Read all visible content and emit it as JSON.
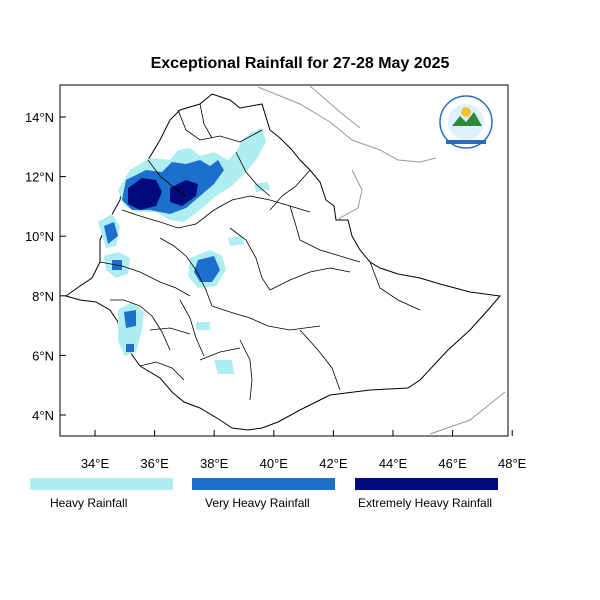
{
  "title": "Exceptional Rainfall for 27-28 May 2025",
  "axes": {
    "lat_ticks": [
      {
        "value": 14,
        "label": "14°N"
      },
      {
        "value": 12,
        "label": "12°N"
      },
      {
        "value": 10,
        "label": "10°N"
      },
      {
        "value": 8,
        "label": "8°N"
      },
      {
        "value": 6,
        "label": "6°N"
      },
      {
        "value": 4,
        "label": "4°N"
      }
    ],
    "lon_ticks": [
      {
        "value": 34,
        "label": "34°E"
      },
      {
        "value": 36,
        "label": "36°E"
      },
      {
        "value": 38,
        "label": "38°E"
      },
      {
        "value": 40,
        "label": "40°E"
      },
      {
        "value": 42,
        "label": "42°E"
      },
      {
        "value": 44,
        "label": "44°E"
      },
      {
        "value": 46,
        "label": "46°E"
      },
      {
        "value": 48,
        "label": "48°E"
      }
    ]
  },
  "legend": [
    {
      "label": "Heavy Rainfall",
      "color": "#aeeef0"
    },
    {
      "label": "Very Heavy Rainfall",
      "color": "#1c6fcc"
    },
    {
      "label": "Extremely Heavy Rainfall",
      "color": "#000a7a"
    }
  ],
  "colors": {
    "heavy": "#aeeef0",
    "very_heavy": "#1c6fcc",
    "extreme": "#000a7a",
    "border": "#000000",
    "coast": "#888888"
  },
  "logo": {
    "icon": "meteorology-agency-logo"
  }
}
